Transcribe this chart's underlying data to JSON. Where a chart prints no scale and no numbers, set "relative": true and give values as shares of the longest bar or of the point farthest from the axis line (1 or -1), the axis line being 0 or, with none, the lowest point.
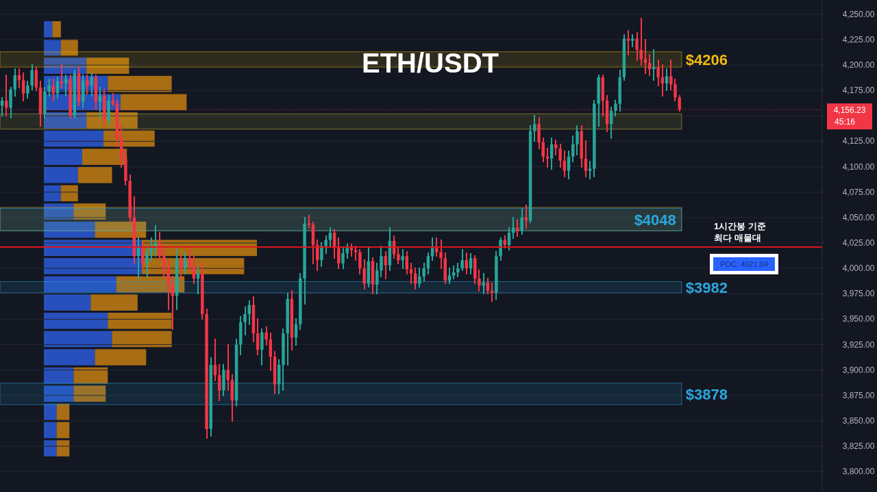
{
  "chart_data": [
    {
      "type": "candlestick",
      "title": "ETH/USDT",
      "categories": [
        null,
        null,
        null,
        null,
        null,
        null,
        null,
        null,
        null,
        null,
        null,
        null,
        null,
        null,
        null,
        null,
        null,
        null,
        null,
        null,
        null,
        null,
        null,
        null,
        null,
        null,
        null,
        null,
        null,
        null,
        null,
        null,
        null,
        null,
        null,
        null,
        null,
        null,
        null,
        null,
        null,
        null,
        null,
        null,
        null,
        null,
        null,
        null,
        null,
        null,
        null,
        null,
        null,
        null,
        null,
        null,
        null,
        null,
        null,
        null,
        null,
        null,
        null,
        null,
        null,
        null,
        null,
        null,
        null,
        null,
        null,
        null,
        null,
        null,
        null,
        null,
        null,
        null,
        null,
        null,
        null,
        null,
        null,
        null,
        null,
        null,
        null,
        null,
        null,
        null,
        null,
        null,
        null,
        null,
        null,
        null,
        null,
        null,
        null,
        null,
        null,
        null,
        null,
        null,
        null,
        null,
        null,
        null,
        null,
        null,
        null,
        null,
        null,
        null,
        null,
        null,
        null,
        null,
        null,
        null,
        null,
        null,
        null,
        null,
        null,
        null,
        null,
        null,
        null,
        null,
        null,
        null,
        null,
        null,
        null,
        null,
        null,
        null,
        null,
        null,
        null,
        null,
        null,
        null,
        null,
        null,
        null,
        null,
        null,
        null,
        null,
        null,
        null,
        null,
        null,
        null,
        null,
        null,
        null,
        null,
        null,
        null,
        null,
        null,
        null,
        null,
        null,
        null,
        null,
        null,
        null,
        null,
        null,
        null,
        null,
        null,
        null,
        null,
        null,
        null,
        null,
        null,
        null,
        null,
        null,
        null,
        null,
        null,
        null,
        null,
        null,
        null,
        null
      ],
      "ohlc": [
        [
          4160,
          4168,
          4150,
          4165
        ],
        [
          4165,
          4190,
          4150,
          4158
        ],
        [
          4158,
          4178,
          4148,
          4176
        ],
        [
          4176,
          4196,
          4170,
          4190
        ],
        [
          4190,
          4196,
          4178,
          4185
        ],
        [
          4185,
          4192,
          4165,
          4172
        ],
        [
          4172,
          4184,
          4168,
          4180
        ],
        [
          4180,
          4200,
          4176,
          4195
        ],
        [
          4195,
          4198,
          4175,
          4178
        ],
        [
          4178,
          4184,
          4140,
          4152
        ],
        [
          4152,
          4178,
          4148,
          4174
        ],
        [
          4174,
          4186,
          4170,
          4180
        ],
        [
          4180,
          4186,
          4165,
          4172
        ],
        [
          4172,
          4188,
          4168,
          4184
        ],
        [
          4184,
          4200,
          4178,
          4182
        ],
        [
          4182,
          4190,
          4170,
          4186
        ],
        [
          4186,
          4190,
          4148,
          4150
        ],
        [
          4150,
          4195,
          4148,
          4192
        ],
        [
          4192,
          4198,
          4160,
          4164
        ],
        [
          4164,
          4190,
          4158,
          4185
        ],
        [
          4185,
          4190,
          4172,
          4180
        ],
        [
          4180,
          4192,
          4170,
          4188
        ],
        [
          4188,
          4190,
          4156,
          4164
        ],
        [
          4164,
          4178,
          4148,
          4170
        ],
        [
          4170,
          4176,
          4140,
          4146
        ],
        [
          4146,
          4170,
          4142,
          4165
        ],
        [
          4165,
          4172,
          4160,
          4162
        ],
        [
          4162,
          4166,
          4120,
          4128
        ],
        [
          4128,
          4140,
          4100,
          4108
        ],
        [
          4108,
          4115,
          4082,
          4086
        ],
        [
          4086,
          4092,
          4045,
          4050
        ],
        [
          4050,
          4070,
          4005,
          4012
        ],
        [
          4012,
          4030,
          3990,
          4020
        ],
        [
          4020,
          4026,
          4000,
          4005
        ],
        [
          4005,
          4022,
          3992,
          4015
        ],
        [
          4015,
          4030,
          4008,
          4020
        ],
        [
          4020,
          4042,
          4012,
          4025
        ],
        [
          4025,
          4035,
          4008,
          4012
        ],
        [
          4012,
          4020,
          3992,
          4000
        ],
        [
          4000,
          4008,
          3960,
          3985
        ],
        [
          3985,
          3992,
          3940,
          3973
        ],
        [
          3973,
          4018,
          3960,
          4010
        ],
        [
          4010,
          4012,
          3990,
          4000
        ],
        [
          4000,
          4015,
          3995,
          4010
        ],
        [
          4010,
          4020,
          3998,
          4002
        ],
        [
          4002,
          4012,
          3985,
          3990
        ],
        [
          3990,
          4000,
          3975,
          3995
        ],
        [
          3995,
          4005,
          3950,
          3955
        ],
        [
          3955,
          3960,
          3833,
          3842
        ],
        [
          3842,
          3912,
          3835,
          3905
        ],
        [
          3905,
          3930,
          3890,
          3895
        ],
        [
          3895,
          3905,
          3870,
          3880
        ],
        [
          3880,
          3905,
          3875,
          3900
        ],
        [
          3900,
          3925,
          3880,
          3890
        ],
        [
          3890,
          3895,
          3850,
          3870
        ],
        [
          3870,
          3930,
          3865,
          3925
        ],
        [
          3925,
          3952,
          3915,
          3947
        ],
        [
          3947,
          3962,
          3935,
          3955
        ],
        [
          3955,
          3968,
          3945,
          3964
        ],
        [
          3964,
          3972,
          3928,
          3936
        ],
        [
          3936,
          3950,
          3915,
          3920
        ],
        [
          3920,
          3940,
          3905,
          3937
        ],
        [
          3937,
          3942,
          3925,
          3930
        ],
        [
          3930,
          3936,
          3900,
          3913
        ],
        [
          3913,
          3918,
          3877,
          3886
        ],
        [
          3886,
          3910,
          3877,
          3905
        ],
        [
          3905,
          3940,
          3880,
          3936
        ],
        [
          3936,
          3975,
          3905,
          3970
        ],
        [
          3970,
          3978,
          3920,
          3932
        ],
        [
          3932,
          3950,
          3925,
          3945
        ],
        [
          3945,
          3995,
          3940,
          3990
        ],
        [
          3990,
          4050,
          3965,
          4044
        ],
        [
          4044,
          4052,
          4040,
          4043
        ],
        [
          4043,
          4045,
          4005,
          4023
        ],
        [
          4023,
          4028,
          3998,
          4008
        ],
        [
          4008,
          4025,
          4002,
          4022
        ],
        [
          4022,
          4032,
          4015,
          4028
        ],
        [
          4028,
          4040,
          4022,
          4035
        ],
        [
          4035,
          4038,
          4010,
          4020
        ],
        [
          4020,
          4030,
          4000,
          4005
        ],
        [
          4005,
          4020,
          4000,
          4015
        ],
        [
          4015,
          4024,
          4010,
          4020
        ],
        [
          4020,
          4024,
          4012,
          4018
        ],
        [
          4018,
          4022,
          4008,
          4016
        ],
        [
          4016,
          4018,
          3995,
          4000
        ],
        [
          4000,
          4008,
          3980,
          3985
        ],
        [
          3985,
          4020,
          3982,
          4007
        ],
        [
          4007,
          4010,
          3975,
          3984
        ],
        [
          3984,
          4005,
          3975,
          3998
        ],
        [
          3998,
          4022,
          3992,
          4012
        ],
        [
          4012,
          4016,
          3990,
          4003
        ],
        [
          4003,
          4040,
          3998,
          4027
        ],
        [
          4027,
          4032,
          4010,
          4014
        ],
        [
          4014,
          4020,
          4005,
          4008
        ],
        [
          4008,
          4018,
          4000,
          4012
        ],
        [
          4012,
          4016,
          3995,
          3999
        ],
        [
          3999,
          4005,
          3985,
          3995
        ],
        [
          3995,
          4000,
          3980,
          3985
        ],
        [
          3985,
          4000,
          3982,
          3992
        ],
        [
          3992,
          4005,
          3988,
          4000
        ],
        [
          4000,
          4015,
          3995,
          4012
        ],
        [
          4012,
          4030,
          4008,
          4020
        ],
        [
          4020,
          4030,
          4012,
          4016
        ],
        [
          4016,
          4028,
          4000,
          4010
        ],
        [
          4010,
          4015,
          3985,
          3988
        ],
        [
          3988,
          4000,
          3985,
          3993
        ],
        [
          3993,
          4002,
          3990,
          3996
        ],
        [
          3996,
          4005,
          3992,
          4000
        ],
        [
          4000,
          4018,
          3998,
          4008
        ],
        [
          4008,
          4015,
          3995,
          4000
        ],
        [
          4000,
          4014,
          3995,
          4010
        ],
        [
          4010,
          4012,
          3985,
          3990
        ],
        [
          3990,
          3998,
          3978,
          3983
        ],
        [
          3983,
          3995,
          3975,
          3986
        ],
        [
          3986,
          3990,
          3975,
          3978
        ],
        [
          3978,
          3985,
          3968,
          3976
        ],
        [
          3976,
          4016,
          3970,
          4012
        ],
        [
          4012,
          4030,
          4008,
          4028
        ],
        [
          4028,
          4032,
          4020,
          4023
        ],
        [
          4023,
          4040,
          4018,
          4035
        ],
        [
          4035,
          4050,
          4030,
          4040
        ],
        [
          4040,
          4048,
          4032,
          4037
        ],
        [
          4037,
          4058,
          4034,
          4050
        ],
        [
          4050,
          4062,
          4040,
          4047
        ],
        [
          4047,
          4140,
          4045,
          4135
        ],
        [
          4135,
          4150,
          4125,
          4142
        ],
        [
          4142,
          4148,
          4118,
          4124
        ],
        [
          4124,
          4128,
          4105,
          4110
        ],
        [
          4110,
          4118,
          4100,
          4108
        ],
        [
          4108,
          4128,
          4098,
          4122
        ],
        [
          4122,
          4126,
          4112,
          4118
        ],
        [
          4118,
          4122,
          4100,
          4106
        ],
        [
          4106,
          4115,
          4090,
          4096
        ],
        [
          4096,
          4115,
          4088,
          4110
        ],
        [
          4110,
          4130,
          4105,
          4122
        ],
        [
          4122,
          4140,
          4112,
          4135
        ],
        [
          4135,
          4140,
          4100,
          4108
        ],
        [
          4108,
          4125,
          4090,
          4096
        ],
        [
          4096,
          4105,
          4088,
          4098
        ],
        [
          4098,
          4165,
          4090,
          4162
        ],
        [
          4162,
          4190,
          4140,
          4188
        ],
        [
          4188,
          4190,
          4150,
          4165
        ],
        [
          4165,
          4170,
          4135,
          4142
        ],
        [
          4142,
          4158,
          4128,
          4155
        ],
        [
          4155,
          4165,
          4150,
          4162
        ],
        [
          4162,
          4195,
          4155,
          4188
        ],
        [
          4188,
          4230,
          4185,
          4226
        ],
        [
          4226,
          4234,
          4210,
          4224
        ],
        [
          4224,
          4230,
          4218,
          4226
        ],
        [
          4226,
          4232,
          4205,
          4215
        ],
        [
          4215,
          4246,
          4200,
          4206
        ],
        [
          4206,
          4225,
          4192,
          4202
        ],
        [
          4202,
          4210,
          4190,
          4196
        ],
        [
          4196,
          4215,
          4185,
          4198
        ],
        [
          4198,
          4205,
          4180,
          4188
        ],
        [
          4188,
          4200,
          4170,
          4182
        ],
        [
          4182,
          4196,
          4175,
          4189
        ],
        [
          4189,
          4205,
          4176,
          4181
        ],
        [
          4181,
          4186,
          4165,
          4168
        ],
        [
          4168,
          4170,
          4155,
          4156.23
        ],
        null,
        null,
        null,
        null,
        null,
        null,
        null,
        null,
        null,
        null,
        null,
        null,
        null,
        null,
        null,
        null,
        null,
        null,
        null,
        null,
        null,
        null,
        null,
        null,
        null,
        null,
        null,
        null,
        null,
        null,
        null,
        null,
        null
      ],
      "ylim": [
        3780,
        4264
      ],
      "yticks": [
        {
          "value": 3800,
          "label": "3,800.00"
        },
        {
          "value": 3825,
          "label": "3,825.00"
        },
        {
          "value": 3850,
          "label": "3,850.00"
        },
        {
          "value": 3875,
          "label": "3,875.00"
        },
        {
          "value": 3900,
          "label": "3,900.00"
        },
        {
          "value": 3925,
          "label": "3,925.00"
        },
        {
          "value": 3950,
          "label": "3,950.00"
        },
        {
          "value": 3975,
          "label": "3,975.00"
        },
        {
          "value": 4000,
          "label": "4,000.00"
        },
        {
          "value": 4025,
          "label": "4,025.00"
        },
        {
          "value": 4050,
          "label": "4,050.00"
        },
        {
          "value": 4075,
          "label": "4,075.00"
        },
        {
          "value": 4100,
          "label": "4,100.00"
        },
        {
          "value": 4125,
          "label": "4,125.00"
        },
        {
          "value": 4150,
          "label": null
        },
        {
          "value": 4175,
          "label": "4,175.00"
        },
        {
          "value": 4200,
          "label": "4,200.00"
        },
        {
          "value": 4225,
          "label": "4,225.00"
        },
        {
          "value": 4250,
          "label": "4,250.00"
        }
      ],
      "grid": "y",
      "bands": [
        {
          "axis": "y",
          "from": 4198,
          "to": 4213,
          "label": "$4206",
          "color": "#f0b90b"
        },
        {
          "axis": "y",
          "from": 4137,
          "to": 4152,
          "color": "#c8b43c"
        },
        {
          "axis": "y",
          "from": 4037,
          "to": 4060,
          "color": "#c8b43c"
        },
        {
          "axis": "y",
          "from": 4037,
          "to": 4059,
          "label": "$4048",
          "color": "#2aa7e0"
        },
        {
          "axis": "y",
          "from": 3976,
          "to": 3987,
          "label": "$3982",
          "color": "#2aa7e0"
        },
        {
          "axis": "y",
          "from": 3866,
          "to": 3887,
          "label": "$3878",
          "color": "#2aa7e0"
        }
      ],
      "ref_lines": [
        {
          "axis": "y",
          "value": 4021.04,
          "label": "POC: 4021.04",
          "color": "#e0161b",
          "line_style": "solid"
        },
        {
          "axis": "y",
          "value": 4156.23,
          "label": "4,156.23",
          "color": "#f23645",
          "line_style": "dotted"
        }
      ],
      "annotations": [
        "45:16",
        "1시간봉 기준\n최다 매물대"
      ]
    },
    {
      "type": "bar",
      "orientation": "horizontal",
      "stacked": true,
      "relative": true,
      "categories": [
        null,
        null,
        null,
        null,
        null,
        null,
        null,
        null,
        null,
        null,
        null,
        null,
        null,
        null,
        null,
        null,
        null,
        null,
        null,
        null,
        null,
        null,
        null,
        null
      ],
      "series": [
        {
          "color": "#2b5bd7",
          "values": [
            0.04,
            0.08,
            0.2,
            0.3,
            0.36,
            0.2,
            0.28,
            0.18,
            0.16,
            0.08,
            0.14,
            0.24,
            0.46,
            0.46,
            0.34,
            0.22,
            0.3,
            0.32,
            0.24,
            0.14,
            0.14,
            0.06,
            0.06,
            0.06
          ]
        },
        {
          "color": "#c47d10",
          "values": [
            0.04,
            0.08,
            0.2,
            0.3,
            0.31,
            0.24,
            0.24,
            0.21,
            0.16,
            0.08,
            0.15,
            0.24,
            0.54,
            0.48,
            0.32,
            0.22,
            0.3,
            0.28,
            0.24,
            0.16,
            0.15,
            0.06,
            0.06,
            0.06
          ]
        }
      ]
    }
  ]
}
